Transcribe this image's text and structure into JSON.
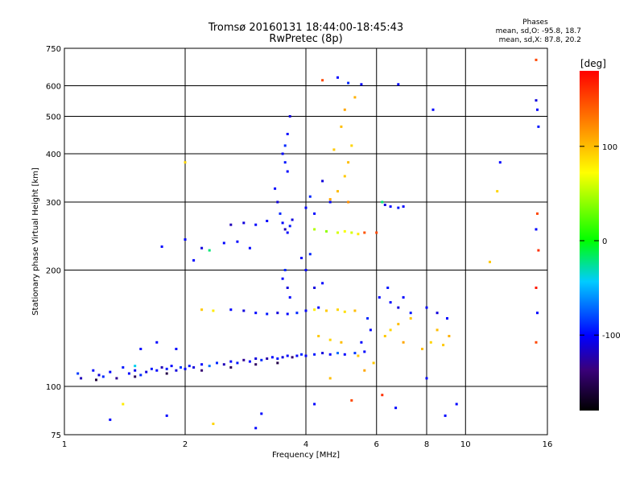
{
  "chart_data": {
    "type": "scatter",
    "title": "Tromsø 20160131 18:44:00-18:45:43",
    "subtitle": "RwPretec (8p)",
    "stats": {
      "heading": "Phases",
      "line_o": "mean, sd,O: -95.8, 18.7",
      "line_x": "mean, sd,X:  87.8, 20.2"
    },
    "xlabel": "Frequency [MHz]",
    "ylabel": "Stationary phase Virtual Height [km]",
    "x_scale": "log",
    "y_scale": "log",
    "xlim": [
      1,
      16
    ],
    "ylim": [
      75,
      750
    ],
    "x_ticks": [
      1,
      2,
      4,
      6,
      8,
      10,
      16
    ],
    "x_tick_labels": [
      "1",
      "2",
      "4",
      "6",
      "8",
      "10",
      "16"
    ],
    "y_ticks": [
      75,
      100,
      200,
      300,
      400,
      500,
      600,
      750
    ],
    "y_tick_labels": [
      "75",
      "100",
      "200",
      "300",
      "400",
      "500",
      "600",
      "750"
    ],
    "grid": true,
    "colorbar": {
      "label": "[deg]",
      "range": [
        -180,
        180
      ],
      "ticks": [
        100,
        0,
        -100
      ],
      "tick_labels": [
        "100",
        "0",
        "-100"
      ]
    },
    "series": [
      {
        "points": [
          [
            1.08,
            108,
            -85
          ],
          [
            1.1,
            105,
            -120
          ],
          [
            1.18,
            110,
            -100
          ],
          [
            1.22,
            107,
            -110
          ],
          [
            1.25,
            106,
            -90
          ],
          [
            1.3,
            109,
            -100
          ],
          [
            1.35,
            105,
            -130
          ],
          [
            1.4,
            112,
            -95
          ],
          [
            1.45,
            108,
            -100
          ],
          [
            1.5,
            110,
            -105
          ],
          [
            1.55,
            107,
            -90
          ],
          [
            1.6,
            109,
            -110
          ],
          [
            1.65,
            111,
            -95
          ],
          [
            1.7,
            110,
            -100
          ],
          [
            1.75,
            112,
            -120
          ],
          [
            1.8,
            111,
            -95
          ],
          [
            1.85,
            113,
            -100
          ],
          [
            1.9,
            110,
            -110
          ],
          [
            1.95,
            112,
            -85
          ],
          [
            2.0,
            111,
            -100
          ],
          [
            2.05,
            113,
            -95
          ],
          [
            2.1,
            112,
            -110
          ],
          [
            2.2,
            114,
            -100
          ],
          [
            2.3,
            113,
            -70
          ],
          [
            2.4,
            115,
            -90
          ],
          [
            2.5,
            114,
            -120
          ],
          [
            2.6,
            116,
            -100
          ],
          [
            2.7,
            115,
            -95
          ],
          [
            2.8,
            117,
            -130
          ],
          [
            2.9,
            116,
            -100
          ],
          [
            3.0,
            118,
            -110
          ],
          [
            3.1,
            117,
            -90
          ],
          [
            3.2,
            118,
            -125
          ],
          [
            3.3,
            119,
            -100
          ],
          [
            3.4,
            118,
            -95
          ],
          [
            3.5,
            119,
            -110
          ],
          [
            3.6,
            120,
            -100
          ],
          [
            3.7,
            119,
            -140
          ],
          [
            3.8,
            120,
            -100
          ],
          [
            3.9,
            121,
            -90
          ],
          [
            4.0,
            120,
            -100
          ],
          [
            4.2,
            121,
            -95
          ],
          [
            4.4,
            122,
            -110
          ],
          [
            4.6,
            121,
            -100
          ],
          [
            4.8,
            122,
            -70
          ],
          [
            5.0,
            121,
            -100
          ],
          [
            5.3,
            122,
            -85
          ],
          [
            5.6,
            123,
            -100
          ],
          [
            1.2,
            104,
            -160
          ],
          [
            1.5,
            106,
            -150
          ],
          [
            1.8,
            108,
            -155
          ],
          [
            2.2,
            110,
            -140
          ],
          [
            2.6,
            112,
            -150
          ],
          [
            3.0,
            114,
            -145
          ],
          [
            3.4,
            115,
            -155
          ],
          [
            2.2,
            158,
            95
          ],
          [
            2.35,
            157,
            80
          ],
          [
            2.6,
            158,
            -100
          ],
          [
            2.8,
            157,
            -110
          ],
          [
            3.0,
            155,
            -100
          ],
          [
            3.2,
            154,
            -95
          ],
          [
            3.4,
            155,
            -110
          ],
          [
            3.6,
            154,
            -100
          ],
          [
            3.8,
            155,
            -90
          ],
          [
            4.0,
            157,
            -100
          ],
          [
            4.2,
            158,
            80
          ],
          [
            4.5,
            157,
            95
          ],
          [
            4.8,
            158,
            90
          ],
          [
            5.0,
            156,
            85
          ],
          [
            5.3,
            157,
            100
          ],
          [
            3.35,
            325,
            -100
          ],
          [
            3.4,
            300,
            -110
          ],
          [
            3.45,
            280,
            -90
          ],
          [
            3.5,
            265,
            -100
          ],
          [
            3.55,
            255,
            -120
          ],
          [
            3.6,
            250,
            -100
          ],
          [
            3.65,
            260,
            -95
          ],
          [
            3.7,
            270,
            -110
          ],
          [
            3.5,
            400,
            -100
          ],
          [
            3.55,
            420,
            -90
          ],
          [
            3.6,
            450,
            -100
          ],
          [
            3.65,
            500,
            -110
          ],
          [
            3.55,
            380,
            -95
          ],
          [
            3.6,
            360,
            -100
          ],
          [
            3.5,
            190,
            -100
          ],
          [
            3.55,
            200,
            -90
          ],
          [
            3.6,
            180,
            -110
          ],
          [
            3.65,
            170,
            -100
          ],
          [
            2.6,
            262,
            -120
          ],
          [
            2.8,
            265,
            -110
          ],
          [
            3.0,
            262,
            -100
          ],
          [
            3.2,
            268,
            -100
          ],
          [
            2.0,
            240,
            -100
          ],
          [
            2.2,
            228,
            -110
          ],
          [
            2.5,
            235,
            -100
          ],
          [
            4.0,
            290,
            -100
          ],
          [
            4.1,
            310,
            -90
          ],
          [
            4.2,
            280,
            -100
          ],
          [
            4.4,
            340,
            -110
          ],
          [
            4.6,
            300,
            -100
          ],
          [
            4.0,
            200,
            -100
          ],
          [
            4.1,
            220,
            -90
          ],
          [
            4.2,
            180,
            -110
          ],
          [
            4.3,
            160,
            -100
          ],
          [
            4.2,
            255,
            50
          ],
          [
            4.5,
            252,
            40
          ],
          [
            4.8,
            250,
            60
          ],
          [
            5.0,
            252,
            70
          ],
          [
            5.2,
            250,
            60
          ],
          [
            5.4,
            248,
            80
          ],
          [
            4.6,
            305,
            110
          ],
          [
            4.8,
            320,
            100
          ],
          [
            5.0,
            350,
            95
          ],
          [
            5.1,
            380,
            100
          ],
          [
            5.2,
            420,
            90
          ],
          [
            4.7,
            410,
            95
          ],
          [
            4.9,
            470,
            100
          ],
          [
            5.0,
            520,
            110
          ],
          [
            5.3,
            560,
            105
          ],
          [
            5.1,
            300,
            120
          ],
          [
            6.3,
            135,
            95
          ],
          [
            6.5,
            140,
            90
          ],
          [
            6.8,
            145,
            100
          ],
          [
            7.0,
            130,
            110
          ],
          [
            7.3,
            150,
            95
          ],
          [
            7.8,
            125,
            100
          ],
          [
            8.2,
            130,
            90
          ],
          [
            8.5,
            140,
            100
          ],
          [
            8.8,
            128,
            95
          ],
          [
            9.1,
            135,
            105
          ],
          [
            6.5,
            165,
            -100
          ],
          [
            6.8,
            160,
            -110
          ],
          [
            7.0,
            170,
            -100
          ],
          [
            7.3,
            155,
            -95
          ],
          [
            8.0,
            160,
            -100
          ],
          [
            8.5,
            155,
            -110
          ],
          [
            9.0,
            150,
            -100
          ],
          [
            6.3,
            295,
            -110
          ],
          [
            6.5,
            292,
            -100
          ],
          [
            6.8,
            290,
            -95
          ],
          [
            7.0,
            292,
            -100
          ],
          [
            6.2,
            300,
            -20
          ],
          [
            4.8,
            630,
            -100
          ],
          [
            5.1,
            610,
            -90
          ],
          [
            5.5,
            605,
            -100
          ],
          [
            6.8,
            605,
            -100
          ],
          [
            8.3,
            520,
            -100
          ],
          [
            12.2,
            380,
            -100
          ],
          [
            6.0,
            250,
            150
          ],
          [
            4.4,
            620,
            150
          ],
          [
            5.6,
            250,
            145
          ],
          [
            15.0,
            700,
            150
          ],
          [
            15.1,
            520,
            -100
          ],
          [
            15.2,
            470,
            -95
          ],
          [
            15.0,
            550,
            -110
          ],
          [
            15.1,
            280,
            150
          ],
          [
            15.0,
            255,
            -100
          ],
          [
            15.2,
            225,
            160
          ],
          [
            15.0,
            180,
            170
          ],
          [
            15.1,
            155,
            -100
          ],
          [
            15.0,
            130,
            150
          ],
          [
            11.5,
            210,
            95
          ],
          [
            12.0,
            320,
            90
          ],
          [
            9.5,
            90,
            -100
          ],
          [
            8.9,
            84,
            -100
          ],
          [
            8.0,
            105,
            -100
          ],
          [
            6.7,
            88,
            -100
          ],
          [
            6.2,
            95,
            160
          ],
          [
            5.2,
            92,
            150
          ],
          [
            4.2,
            90,
            -100
          ],
          [
            3.0,
            78,
            -100
          ],
          [
            1.4,
            90,
            80
          ],
          [
            1.3,
            82,
            -100
          ],
          [
            1.8,
            84,
            -100
          ],
          [
            1.5,
            113,
            -40
          ],
          [
            1.75,
            230,
            -100
          ],
          [
            2.1,
            212,
            -100
          ],
          [
            2.9,
            228,
            -100
          ],
          [
            3.9,
            215,
            -100
          ],
          [
            4.4,
            185,
            -100
          ],
          [
            1.55,
            125,
            -100
          ],
          [
            1.7,
            130,
            -100
          ],
          [
            1.9,
            125,
            -100
          ],
          [
            2.0,
            380,
            90
          ],
          [
            2.3,
            225,
            -20
          ],
          [
            2.7,
            237,
            -100
          ],
          [
            2.35,
            80,
            90
          ],
          [
            3.1,
            85,
            -100
          ],
          [
            4.6,
            105,
            100
          ],
          [
            5.6,
            110,
            110
          ],
          [
            5.9,
            115,
            95
          ],
          [
            6.1,
            170,
            -100
          ],
          [
            6.4,
            180,
            -95
          ],
          [
            5.8,
            140,
            -100
          ],
          [
            5.7,
            150,
            -90
          ],
          [
            5.5,
            130,
            -100
          ],
          [
            5.4,
            120,
            95
          ],
          [
            4.9,
            130,
            100
          ],
          [
            4.6,
            132,
            90
          ],
          [
            4.3,
            135,
            95
          ]
        ]
      }
    ]
  }
}
